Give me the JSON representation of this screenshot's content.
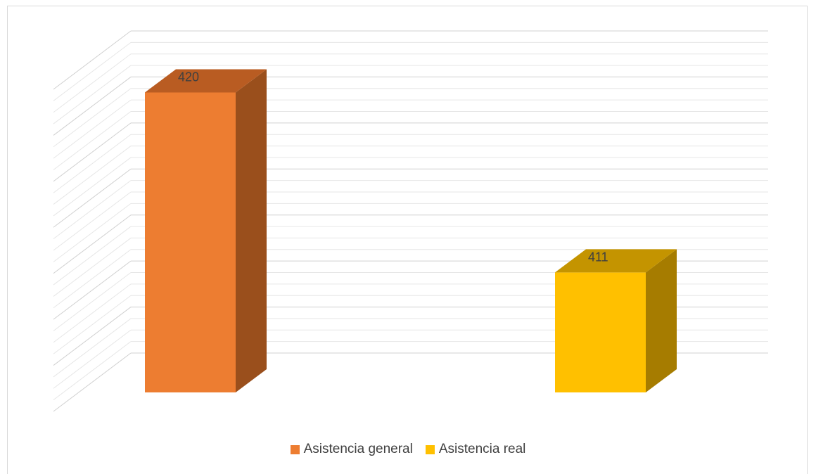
{
  "chart_data": {
    "type": "bar",
    "style": "3d-column",
    "categories": [
      "Asistencia general",
      "Asistencia real"
    ],
    "values": [
      420,
      411
    ],
    "data_labels": [
      "420",
      "411"
    ],
    "colors": [
      "#ED7D31",
      "#FFC000"
    ],
    "side_colors": [
      "#9A4F1C",
      "#A67C00"
    ],
    "top_colors": [
      "#B95C22",
      "#C49400"
    ],
    "ylim": [
      405,
      421
    ],
    "gridlines": true,
    "legend": {
      "position": "bottom",
      "items": [
        {
          "label": "Asistencia general",
          "color": "#ED7D31"
        },
        {
          "label": "Asistencia real",
          "color": "#FFC000"
        }
      ]
    }
  }
}
